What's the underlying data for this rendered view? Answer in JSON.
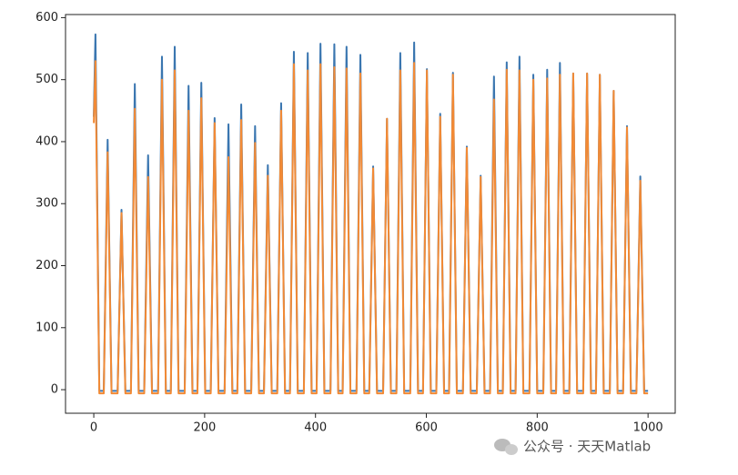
{
  "chart_data": {
    "type": "line",
    "x": [
      0,
      3,
      10,
      18,
      25,
      32,
      43,
      50,
      57,
      67,
      74,
      81,
      91,
      98,
      105,
      116,
      123,
      130,
      139,
      146,
      153,
      164,
      171,
      178,
      187,
      194,
      201,
      211,
      218,
      225,
      236,
      243,
      250,
      259,
      266,
      273,
      284,
      291,
      298,
      307,
      314,
      321,
      331,
      338,
      345,
      354,
      361,
      368,
      379,
      386,
      393,
      402,
      409,
      416,
      427,
      434,
      441,
      449,
      456,
      463,
      474,
      481,
      488,
      497,
      504,
      511,
      522,
      529,
      536,
      546,
      553,
      560,
      571,
      578,
      585,
      594,
      601,
      608,
      618,
      625,
      632,
      641,
      648,
      655,
      666,
      673,
      680,
      691,
      698,
      705,
      715,
      722,
      729,
      738,
      745,
      752,
      761,
      768,
      775,
      786,
      793,
      800,
      811,
      818,
      825,
      834,
      841,
      848,
      858,
      865,
      872,
      883,
      890,
      897,
      906,
      913,
      920,
      931,
      938,
      945,
      955,
      962,
      969,
      979,
      986,
      993,
      1000
    ],
    "series": [
      {
        "color": "#3a76b0",
        "values": [
          440,
          573,
          -2,
          -2,
          403,
          -2,
          -2,
          290,
          -2,
          -2,
          493,
          -2,
          -2,
          378,
          -2,
          -2,
          537,
          -2,
          -2,
          553,
          -2,
          -2,
          490,
          -2,
          -2,
          495,
          -2,
          -2,
          438,
          -2,
          -2,
          428,
          -2,
          -2,
          460,
          -2,
          -2,
          425,
          -2,
          -2,
          362,
          -2,
          -2,
          462,
          -2,
          -2,
          545,
          -2,
          -2,
          543,
          -2,
          -2,
          558,
          -2,
          -2,
          557,
          -2,
          -2,
          553,
          -2,
          -2,
          540,
          -2,
          -2,
          360,
          -2,
          -2,
          437,
          -2,
          -2,
          543,
          -2,
          -2,
          560,
          -2,
          -2,
          517,
          -2,
          -2,
          445,
          -2,
          -2,
          511,
          -2,
          -2,
          392,
          -2,
          -2,
          345,
          -2,
          -2,
          505,
          -2,
          -2,
          528,
          -2,
          -2,
          537,
          -2,
          -2,
          508,
          -2,
          -2,
          516,
          -2,
          -2,
          527,
          -2,
          -2,
          510,
          -2,
          -2,
          510,
          -2,
          -2,
          508,
          -2,
          -2,
          482,
          -2,
          -2,
          425,
          -2,
          -2,
          344,
          -2,
          -2
        ]
      },
      {
        "color": "#f28a35",
        "values": [
          430,
          530,
          -6,
          -6,
          383,
          -6,
          -6,
          285,
          -6,
          -6,
          453,
          -6,
          -6,
          343,
          -6,
          -6,
          500,
          -6,
          -6,
          515,
          -6,
          -6,
          450,
          -6,
          -6,
          470,
          -6,
          -6,
          430,
          -6,
          -6,
          375,
          -6,
          -6,
          435,
          -6,
          -6,
          398,
          -6,
          -6,
          345,
          -6,
          -6,
          450,
          -6,
          -6,
          525,
          -6,
          -6,
          515,
          -6,
          -6,
          525,
          -6,
          -6,
          520,
          -6,
          -6,
          518,
          -6,
          -6,
          510,
          -6,
          -6,
          357,
          -6,
          -6,
          437,
          -6,
          -6,
          515,
          -6,
          -6,
          527,
          -6,
          -6,
          515,
          -6,
          -6,
          440,
          -6,
          -6,
          508,
          -6,
          -6,
          390,
          -6,
          -6,
          343,
          -6,
          -6,
          468,
          -6,
          -6,
          516,
          -6,
          -6,
          515,
          -6,
          -6,
          500,
          -6,
          -6,
          502,
          -6,
          -6,
          508,
          -6,
          -6,
          510,
          -6,
          -6,
          510,
          -6,
          -6,
          508,
          -6,
          -6,
          482,
          -6,
          -6,
          423,
          -6,
          -6,
          337,
          -6,
          -6
        ]
      }
    ],
    "xlim": [
      -51,
      1049
    ],
    "ylim": [
      -38,
      605
    ],
    "xticks": [
      0,
      200,
      400,
      600,
      800,
      1000
    ],
    "yticks": [
      0,
      100,
      200,
      300,
      400,
      500,
      600
    ],
    "grid": false
  },
  "watermark": "公众号 · 天天Matlab"
}
